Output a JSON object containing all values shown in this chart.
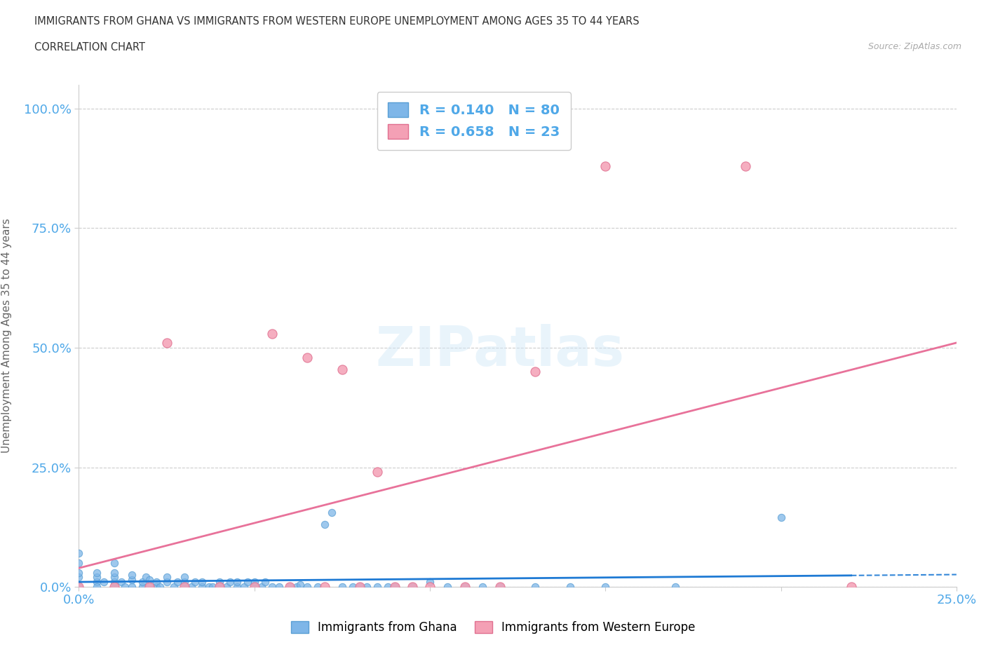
{
  "title_line1": "IMMIGRANTS FROM GHANA VS IMMIGRANTS FROM WESTERN EUROPE UNEMPLOYMENT AMONG AGES 35 TO 44 YEARS",
  "title_line2": "CORRELATION CHART",
  "source_text": "Source: ZipAtlas.com",
  "ylabel": "Unemployment Among Ages 35 to 44 years",
  "xlim": [
    0,
    0.25
  ],
  "ylim": [
    0,
    1.05
  ],
  "ghana_color": "#7eb6e8",
  "ghana_edge_color": "#5a9fd4",
  "western_europe_color": "#f4a0b5",
  "western_europe_edge_color": "#e07090",
  "ghana_trend_color": "#1e7ad4",
  "western_europe_trend_color": "#e8729a",
  "ghana_R": 0.14,
  "ghana_N": 80,
  "western_europe_R": 0.658,
  "western_europe_N": 23,
  "watermark_text": "ZIPatlas",
  "ghana_scatter_x": [
    0.0,
    0.0,
    0.0,
    0.0,
    0.0,
    0.005,
    0.005,
    0.005,
    0.005,
    0.007,
    0.01,
    0.01,
    0.01,
    0.01,
    0.01,
    0.012,
    0.013,
    0.015,
    0.015,
    0.015,
    0.018,
    0.018,
    0.019,
    0.02,
    0.02,
    0.022,
    0.022,
    0.023,
    0.025,
    0.025,
    0.027,
    0.028,
    0.03,
    0.03,
    0.03,
    0.032,
    0.033,
    0.035,
    0.035,
    0.037,
    0.038,
    0.04,
    0.04,
    0.042,
    0.043,
    0.045,
    0.045,
    0.047,
    0.048,
    0.05,
    0.05,
    0.052,
    0.053,
    0.055,
    0.057,
    0.06,
    0.062,
    0.063,
    0.065,
    0.068,
    0.07,
    0.072,
    0.075,
    0.078,
    0.08,
    0.082,
    0.085,
    0.088,
    0.09,
    0.095,
    0.1,
    0.105,
    0.11,
    0.115,
    0.12,
    0.13,
    0.14,
    0.15,
    0.17,
    0.2
  ],
  "ghana_scatter_y": [
    0.02,
    0.03,
    0.05,
    0.07,
    0.0,
    0.01,
    0.02,
    0.03,
    0.0,
    0.01,
    0.0,
    0.01,
    0.02,
    0.03,
    0.05,
    0.01,
    0.0,
    0.0,
    0.015,
    0.025,
    0.0,
    0.01,
    0.02,
    0.0,
    0.015,
    0.0,
    0.01,
    0.0,
    0.01,
    0.02,
    0.0,
    0.01,
    0.0,
    0.01,
    0.02,
    0.0,
    0.01,
    0.0,
    0.01,
    0.0,
    0.0,
    0.0,
    0.01,
    0.0,
    0.01,
    0.0,
    0.01,
    0.0,
    0.01,
    0.0,
    0.01,
    0.0,
    0.01,
    0.0,
    0.0,
    0.0,
    0.0,
    0.005,
    0.0,
    0.0,
    0.13,
    0.155,
    0.0,
    0.0,
    0.0,
    0.0,
    0.0,
    0.0,
    0.0,
    0.0,
    0.01,
    0.0,
    0.0,
    0.0,
    0.0,
    0.0,
    0.0,
    0.0,
    0.0,
    0.145
  ],
  "western_europe_scatter_x": [
    0.0,
    0.01,
    0.02,
    0.025,
    0.03,
    0.04,
    0.05,
    0.055,
    0.06,
    0.065,
    0.07,
    0.075,
    0.08,
    0.085,
    0.09,
    0.095,
    0.1,
    0.11,
    0.12,
    0.13,
    0.15,
    0.19,
    0.22
  ],
  "western_europe_scatter_y": [
    0.0,
    0.0,
    0.0,
    0.51,
    0.0,
    0.0,
    0.0,
    0.53,
    0.0,
    0.48,
    0.0,
    0.455,
    0.0,
    0.24,
    0.0,
    0.0,
    0.0,
    0.0,
    0.0,
    0.45,
    0.88,
    0.88,
    0.0
  ],
  "ghana_scatter_sizes": 55,
  "western_europe_scatter_sizes": 90,
  "background_color": "#ffffff",
  "grid_color": "#cccccc",
  "title_color": "#333333",
  "axis_label_color": "#666666",
  "tick_label_color_blue": "#4fa8e8",
  "legend_text_color": "#4fa8e8",
  "ghana_line_style": "solid",
  "we_line_style": "solid",
  "ghana_dash_style": "dashed"
}
